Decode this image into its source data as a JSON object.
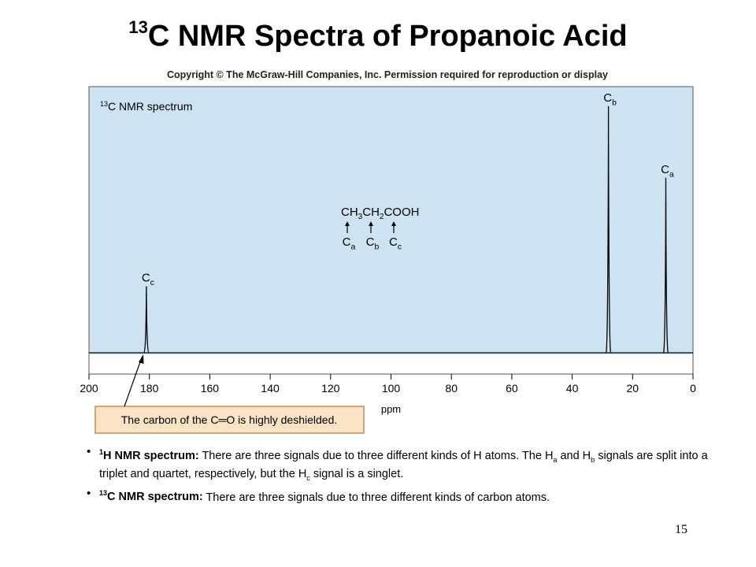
{
  "title": {
    "prefix_sup": "13",
    "text": "C NMR Spectra of Propanoic Acid"
  },
  "copyright": "Copyright © The McGraw-Hill Companies, Inc. Permission required for reproduction or display",
  "colors": {
    "plot_bg": "#cde3f1",
    "callout_bg": "#fbe3c5",
    "callout_border": "#c98a4a"
  },
  "chart_data": {
    "type": "line",
    "title": "¹³C NMR spectrum",
    "xlabel": "ppm",
    "xlim": [
      200,
      0
    ],
    "xticks": [
      200,
      180,
      160,
      140,
      120,
      100,
      80,
      60,
      40,
      20,
      0
    ],
    "x_reversed": true,
    "grid": false,
    "peaks": [
      {
        "ppm": 181,
        "label": "C",
        "sub": "c",
        "relative_height": 0.27
      },
      {
        "ppm": 28,
        "label": "C",
        "sub": "b",
        "relative_height": 1.0
      },
      {
        "ppm": 9,
        "label": "C",
        "sub": "a",
        "relative_height": 0.71
      }
    ],
    "molecule": {
      "formula_parts": [
        {
          "t": "CH"
        },
        {
          "t": "3",
          "sub": true
        },
        {
          "t": "CH"
        },
        {
          "t": "2",
          "sub": true
        },
        {
          "t": "COOH"
        }
      ],
      "carbons": [
        {
          "label": "C",
          "sub": "a"
        },
        {
          "label": "C",
          "sub": "b"
        },
        {
          "label": "C",
          "sub": "c"
        }
      ]
    },
    "callout": "The carbon of the C=O is highly deshielded."
  },
  "bullets": [
    {
      "bold_sup": "1",
      "bold": "H NMR spectrum:",
      "text_parts": [
        {
          "t": " There are three signals due to three different kinds of H atoms. The H"
        },
        {
          "t": "a",
          "sub": true
        },
        {
          "t": " and H"
        },
        {
          "t": "b",
          "sub": true
        },
        {
          "t": " signals are split into a triplet and quartet, respectively, but the H"
        },
        {
          "t": "c",
          "sub": true
        },
        {
          "t": " signal is a singlet."
        }
      ]
    },
    {
      "bold_sup": "13",
      "bold": "C NMR spectrum:",
      "text_parts": [
        {
          "t": " There are three signals due to three different kinds of carbon atoms."
        }
      ]
    }
  ],
  "page_number": "15"
}
